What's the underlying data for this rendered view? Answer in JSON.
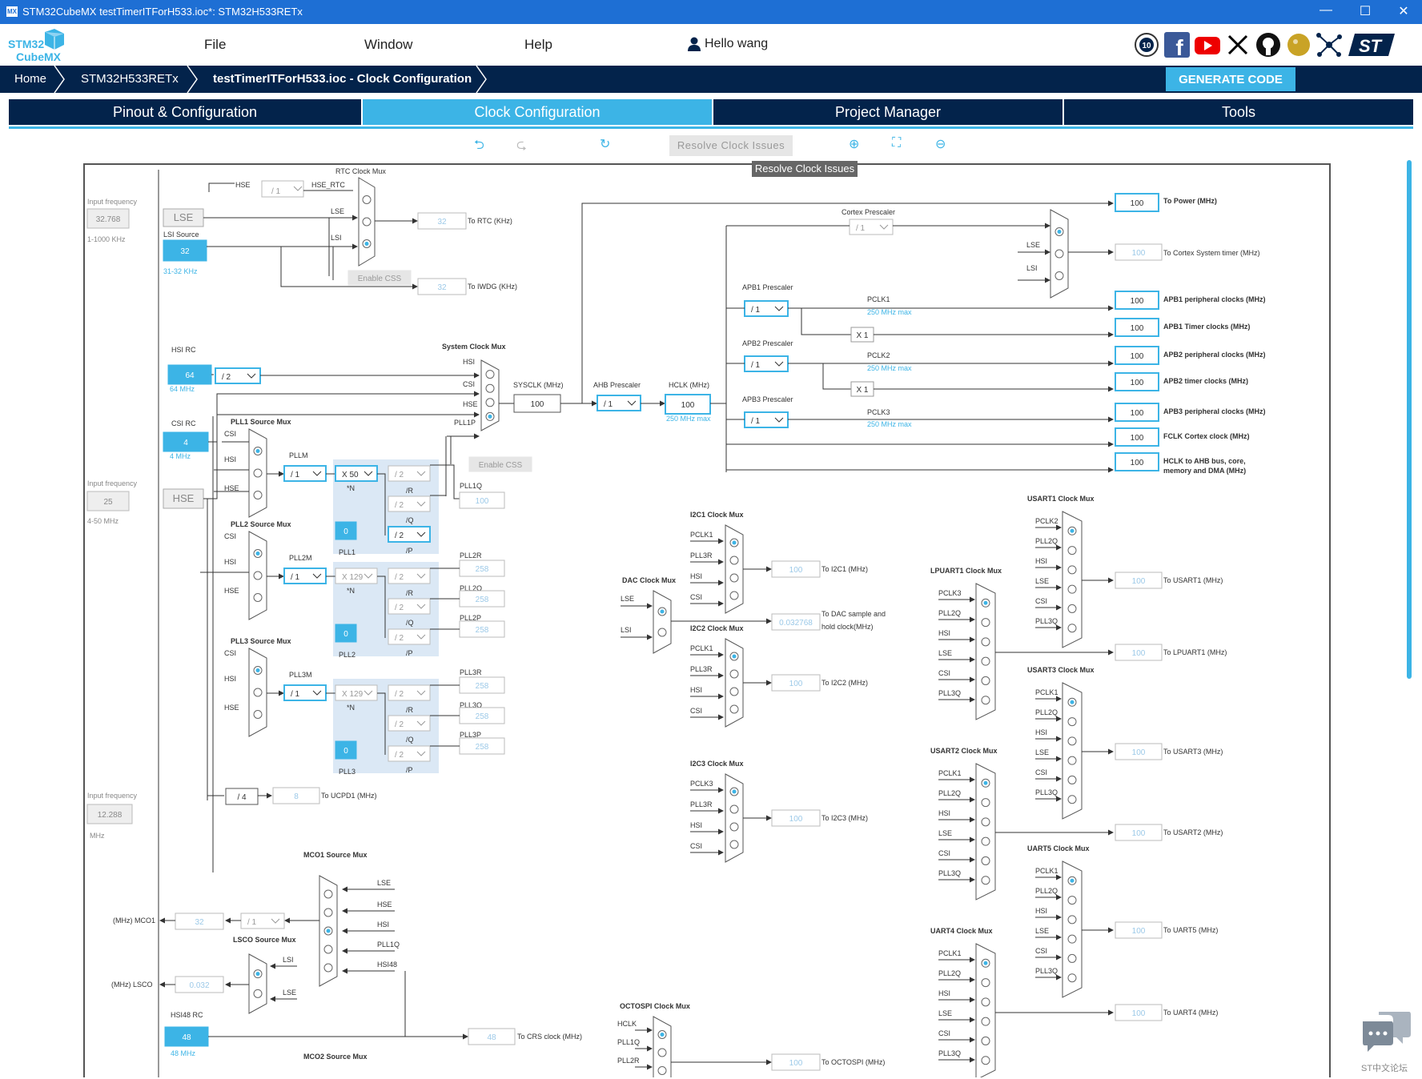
{
  "window": {
    "title": "STM32CubeMX testTimerITForH533.ioc*: STM32H533RETx",
    "app_logo": "MX",
    "controls": {
      "minimize": "—",
      "maximize": "☐",
      "close": "✕"
    }
  },
  "brand": {
    "line1": "STM32",
    "line2": "CubeMX"
  },
  "menu": {
    "file": "File",
    "window": "Window",
    "help": "Help",
    "user": "Hello wang"
  },
  "social_icons": [
    "anniversary-badge-icon",
    "facebook-icon",
    "youtube-icon",
    "x-icon",
    "github-icon",
    "community-icon",
    "network-icon",
    "st-logo-icon"
  ],
  "breadcrumb": {
    "home": "Home",
    "device": "STM32H533RETx",
    "current": "testTimerITForH533.ioc - Clock Configuration"
  },
  "generate_label": "GENERATE CODE",
  "tabs": {
    "pinout": "Pinout & Configuration",
    "clock": "Clock Configuration",
    "project": "Project Manager",
    "tools": "Tools"
  },
  "toolbar": {
    "undo": "⮌",
    "redo": "⮎",
    "reset": "↻",
    "resolve": "Resolve Clock Issues",
    "zoom_in": "⊕",
    "fit": "⛶",
    "zoom_out": "⊖",
    "tooltip": "Resolve Clock Issues"
  },
  "footer": {
    "chat_label": "ST中文论坛"
  },
  "colors": {
    "accent": "#3cb4e6",
    "navy": "#03234b",
    "titlebar": "#1e6fd4"
  },
  "diagram": {
    "lse": {
      "input_label": "Input frequency",
      "value": "32.768",
      "name": "LSE",
      "range": "1-1000 KHz"
    },
    "lsi": {
      "label": "LSI Source",
      "value": "32",
      "range": "31-32 KHz"
    },
    "hsi": {
      "label": "HSI RC",
      "value": "64",
      "freq": "64 MHz",
      "div": "/ 2"
    },
    "csi": {
      "label": "CSI RC",
      "value": "4",
      "freq": "4 MHz"
    },
    "hse": {
      "input_label": "Input frequency",
      "value": "25",
      "name": "HSE",
      "range": "4-50 MHz"
    },
    "i2s": {
      "input_label": "Input frequency",
      "value": "12.288",
      "unit": "MHz"
    },
    "hsi48": {
      "label": "HSI48 RC",
      "value": "48",
      "freq": "48 MHz"
    },
    "rtc": {
      "mux": "RTC Clock Mux",
      "hse": "HSE",
      "div": "/ 1",
      "hse_rtc": "HSE_RTC",
      "lse": "LSE",
      "lsi": "LSI",
      "value": "32",
      "to": "To RTC (KHz)",
      "css": "Enable CSS",
      "iwdg_value": "32",
      "iwdg_to": "To IWDG (KHz)"
    },
    "sysmux": {
      "label": "System Clock Mux",
      "hsi": "HSI",
      "csi": "CSI",
      "hse": "HSE",
      "pll1p": "PLL1P",
      "css": "Enable CSS"
    },
    "sysclk": {
      "label": "SYSCLK (MHz)",
      "value": "100"
    },
    "ahb": {
      "label": "AHB Prescaler",
      "value": "/ 1"
    },
    "hclk": {
      "label": "HCLK (MHz)",
      "value": "100",
      "max": "250 MHz max"
    },
    "cortex": {
      "label": "Cortex Prescaler",
      "value": "/ 1",
      "lse": "LSE",
      "lsi": "LSI"
    },
    "apb1": {
      "label": "APB1 Prescaler",
      "value": "/ 1",
      "pclk": "PCLK1",
      "max": "250 MHz max",
      "mult": "X 1"
    },
    "apb2": {
      "label": "APB2 Prescaler",
      "value": "/ 1",
      "pclk": "PCLK2",
      "max": "250 MHz max",
      "mult": "X 1"
    },
    "apb3": {
      "label": "APB3 Prescaler",
      "value": "/ 1",
      "pclk": "PCLK3",
      "max": "250 MHz max"
    },
    "outputs": [
      {
        "value": "100",
        "label": "To Power (MHz)"
      },
      {
        "value": "100",
        "label": "To Cortex System timer (MHz)"
      },
      {
        "value": "100",
        "label": "APB1 peripheral clocks (MHz)"
      },
      {
        "value": "100",
        "label": "APB1 Timer clocks (MHz)"
      },
      {
        "value": "100",
        "label": "APB2 peripheral clocks (MHz)"
      },
      {
        "value": "100",
        "label": "APB2 timer clocks (MHz)"
      },
      {
        "value": "100",
        "label": "APB3 peripheral clocks (MHz)"
      },
      {
        "value": "100",
        "label": "FCLK Cortex clock (MHz)"
      },
      {
        "value": "100",
        "label": "HCLK to AHB bus, core,",
        "label2": "memory and DMA (MHz)"
      }
    ],
    "pll1": {
      "mux": "PLL1 Source Mux",
      "csi": "CSI",
      "hsi": "HSI",
      "hse": "HSE",
      "m_label": "PLLM",
      "m": "/ 1",
      "n": "X 50",
      "n_lbl": "*N",
      "r": "/ 2",
      "r_lbl": "/R",
      "q": "/ 2",
      "q_lbl": "/Q",
      "p": "/ 2",
      "p_lbl": "/P",
      "frac": "0",
      "name": "PLL1",
      "q_out_lbl": "PLL1Q",
      "q_out": "100"
    },
    "pll2": {
      "mux": "PLL2 Source Mux",
      "csi": "CSI",
      "hsi": "HSI",
      "hse": "HSE",
      "m_label": "PLL2M",
      "m": "/ 1",
      "n": "X 129",
      "n_lbl": "*N",
      "r": "/ 2",
      "r_lbl": "/R",
      "q": "/ 2",
      "q_lbl": "/Q",
      "p": "/ 2",
      "p_lbl": "/P",
      "frac": "0",
      "name": "PLL2",
      "r_out_lbl": "PLL2R",
      "r_out": "258",
      "q_out_lbl": "PLL2Q",
      "q_out": "258",
      "p_out_lbl": "PLL2P",
      "p_out": "258"
    },
    "pll3": {
      "mux": "PLL3 Source Mux",
      "csi": "CSI",
      "hsi": "HSI",
      "hse": "HSE",
      "m_label": "PLL3M",
      "m": "/ 1",
      "n": "X 129",
      "n_lbl": "*N",
      "r": "/ 2",
      "r_lbl": "/R",
      "q": "/ 2",
      "q_lbl": "/Q",
      "p": "/ 2",
      "p_lbl": "/P",
      "frac": "0",
      "name": "PLL3",
      "r_out_lbl": "PLL3R",
      "r_out": "258",
      "q_out_lbl": "PLL3Q",
      "q_out": "258",
      "p_out_lbl": "PLL3P",
      "p_out": "258"
    },
    "ucpd": {
      "div": "/ 4",
      "value": "8",
      "to": "To UCPD1 (MHz)"
    },
    "mco1": {
      "mux": "MCO1 Source Mux",
      "lse": "LSE",
      "hse": "HSE",
      "hsi": "HSI",
      "pll1q": "PLL1Q",
      "hsi48": "HSI48",
      "value": "32",
      "div": "/ 1",
      "out": "(MHz) MCO1"
    },
    "lsco": {
      "mux": "LSCO Source Mux",
      "lsi": "LSI",
      "lse": "LSE",
      "value": "0.032",
      "out": "(MHz) LSCO"
    },
    "crs": {
      "value": "48",
      "to": "To CRS clock (MHz)"
    },
    "mco2": {
      "mux": "MCO2 Source Mux"
    },
    "dac": {
      "mux": "DAC Clock Mux",
      "lse": "LSE",
      "lsi": "LSI",
      "value": "0.032768",
      "to1": "To DAC sample and",
      "to2": "hold clock(MHz)"
    },
    "i2c1": {
      "mux": "I2C1 Clock Mux",
      "in": [
        "PCLK1",
        "PLL3R",
        "HSI",
        "CSI"
      ],
      "value": "100",
      "to": "To I2C1 (MHz)"
    },
    "i2c2": {
      "mux": "I2C2 Clock Mux",
      "in": [
        "PCLK1",
        "PLL3R",
        "HSI",
        "CSI"
      ],
      "value": "100",
      "to": "To I2C2 (MHz)"
    },
    "i2c3": {
      "mux": "I2C3 Clock Mux",
      "in": [
        "PCLK3",
        "PLL3R",
        "HSI",
        "CSI"
      ],
      "value": "100",
      "to": "To I2C3 (MHz)"
    },
    "octospi": {
      "mux": "OCTOSPI Clock Mux",
      "in": [
        "HCLK",
        "PLL1Q",
        "PLL2R"
      ],
      "value": "100",
      "to": "To OCTOSPI (MHz)"
    },
    "lpuart1": {
      "mux": "LPUART1 Clock Mux",
      "in": [
        "PCLK3",
        "PLL2Q",
        "HSI",
        "LSE",
        "CSI",
        "PLL3Q"
      ],
      "value": "100",
      "to": "To LPUART1 (MHz)"
    },
    "usart2": {
      "mux": "USART2 Clock Mux",
      "in": [
        "PCLK1",
        "PLL2Q",
        "HSI",
        "LSE",
        "CSI",
        "PLL3Q"
      ],
      "value": "100",
      "to": "To USART2 (MHz)"
    },
    "uart4": {
      "mux": "UART4 Clock Mux",
      "in": [
        "PCLK1",
        "PLL2Q",
        "HSI",
        "LSE",
        "CSI",
        "PLL3Q"
      ],
      "value": "100",
      "to": "To UART4 (MHz)"
    },
    "usart1": {
      "mux": "USART1 Clock Mux",
      "in": [
        "PCLK2",
        "PLL2Q",
        "HSI",
        "LSE",
        "CSI",
        "PLL3Q"
      ],
      "value": "100",
      "to": "To USART1 (MHz)"
    },
    "usart3": {
      "mux": "USART3 Clock Mux",
      "in": [
        "PCLK1",
        "PLL2Q",
        "HSI",
        "LSE",
        "CSI",
        "PLL3Q"
      ],
      "value": "100",
      "to": "To USART3 (MHz)"
    },
    "uart5": {
      "mux": "UART5 Clock Mux",
      "in": [
        "PCLK1",
        "PLL2Q",
        "HSI",
        "LSE",
        "CSI",
        "PLL3Q"
      ],
      "value": "100",
      "to": "To UART5 (MHz)"
    }
  }
}
